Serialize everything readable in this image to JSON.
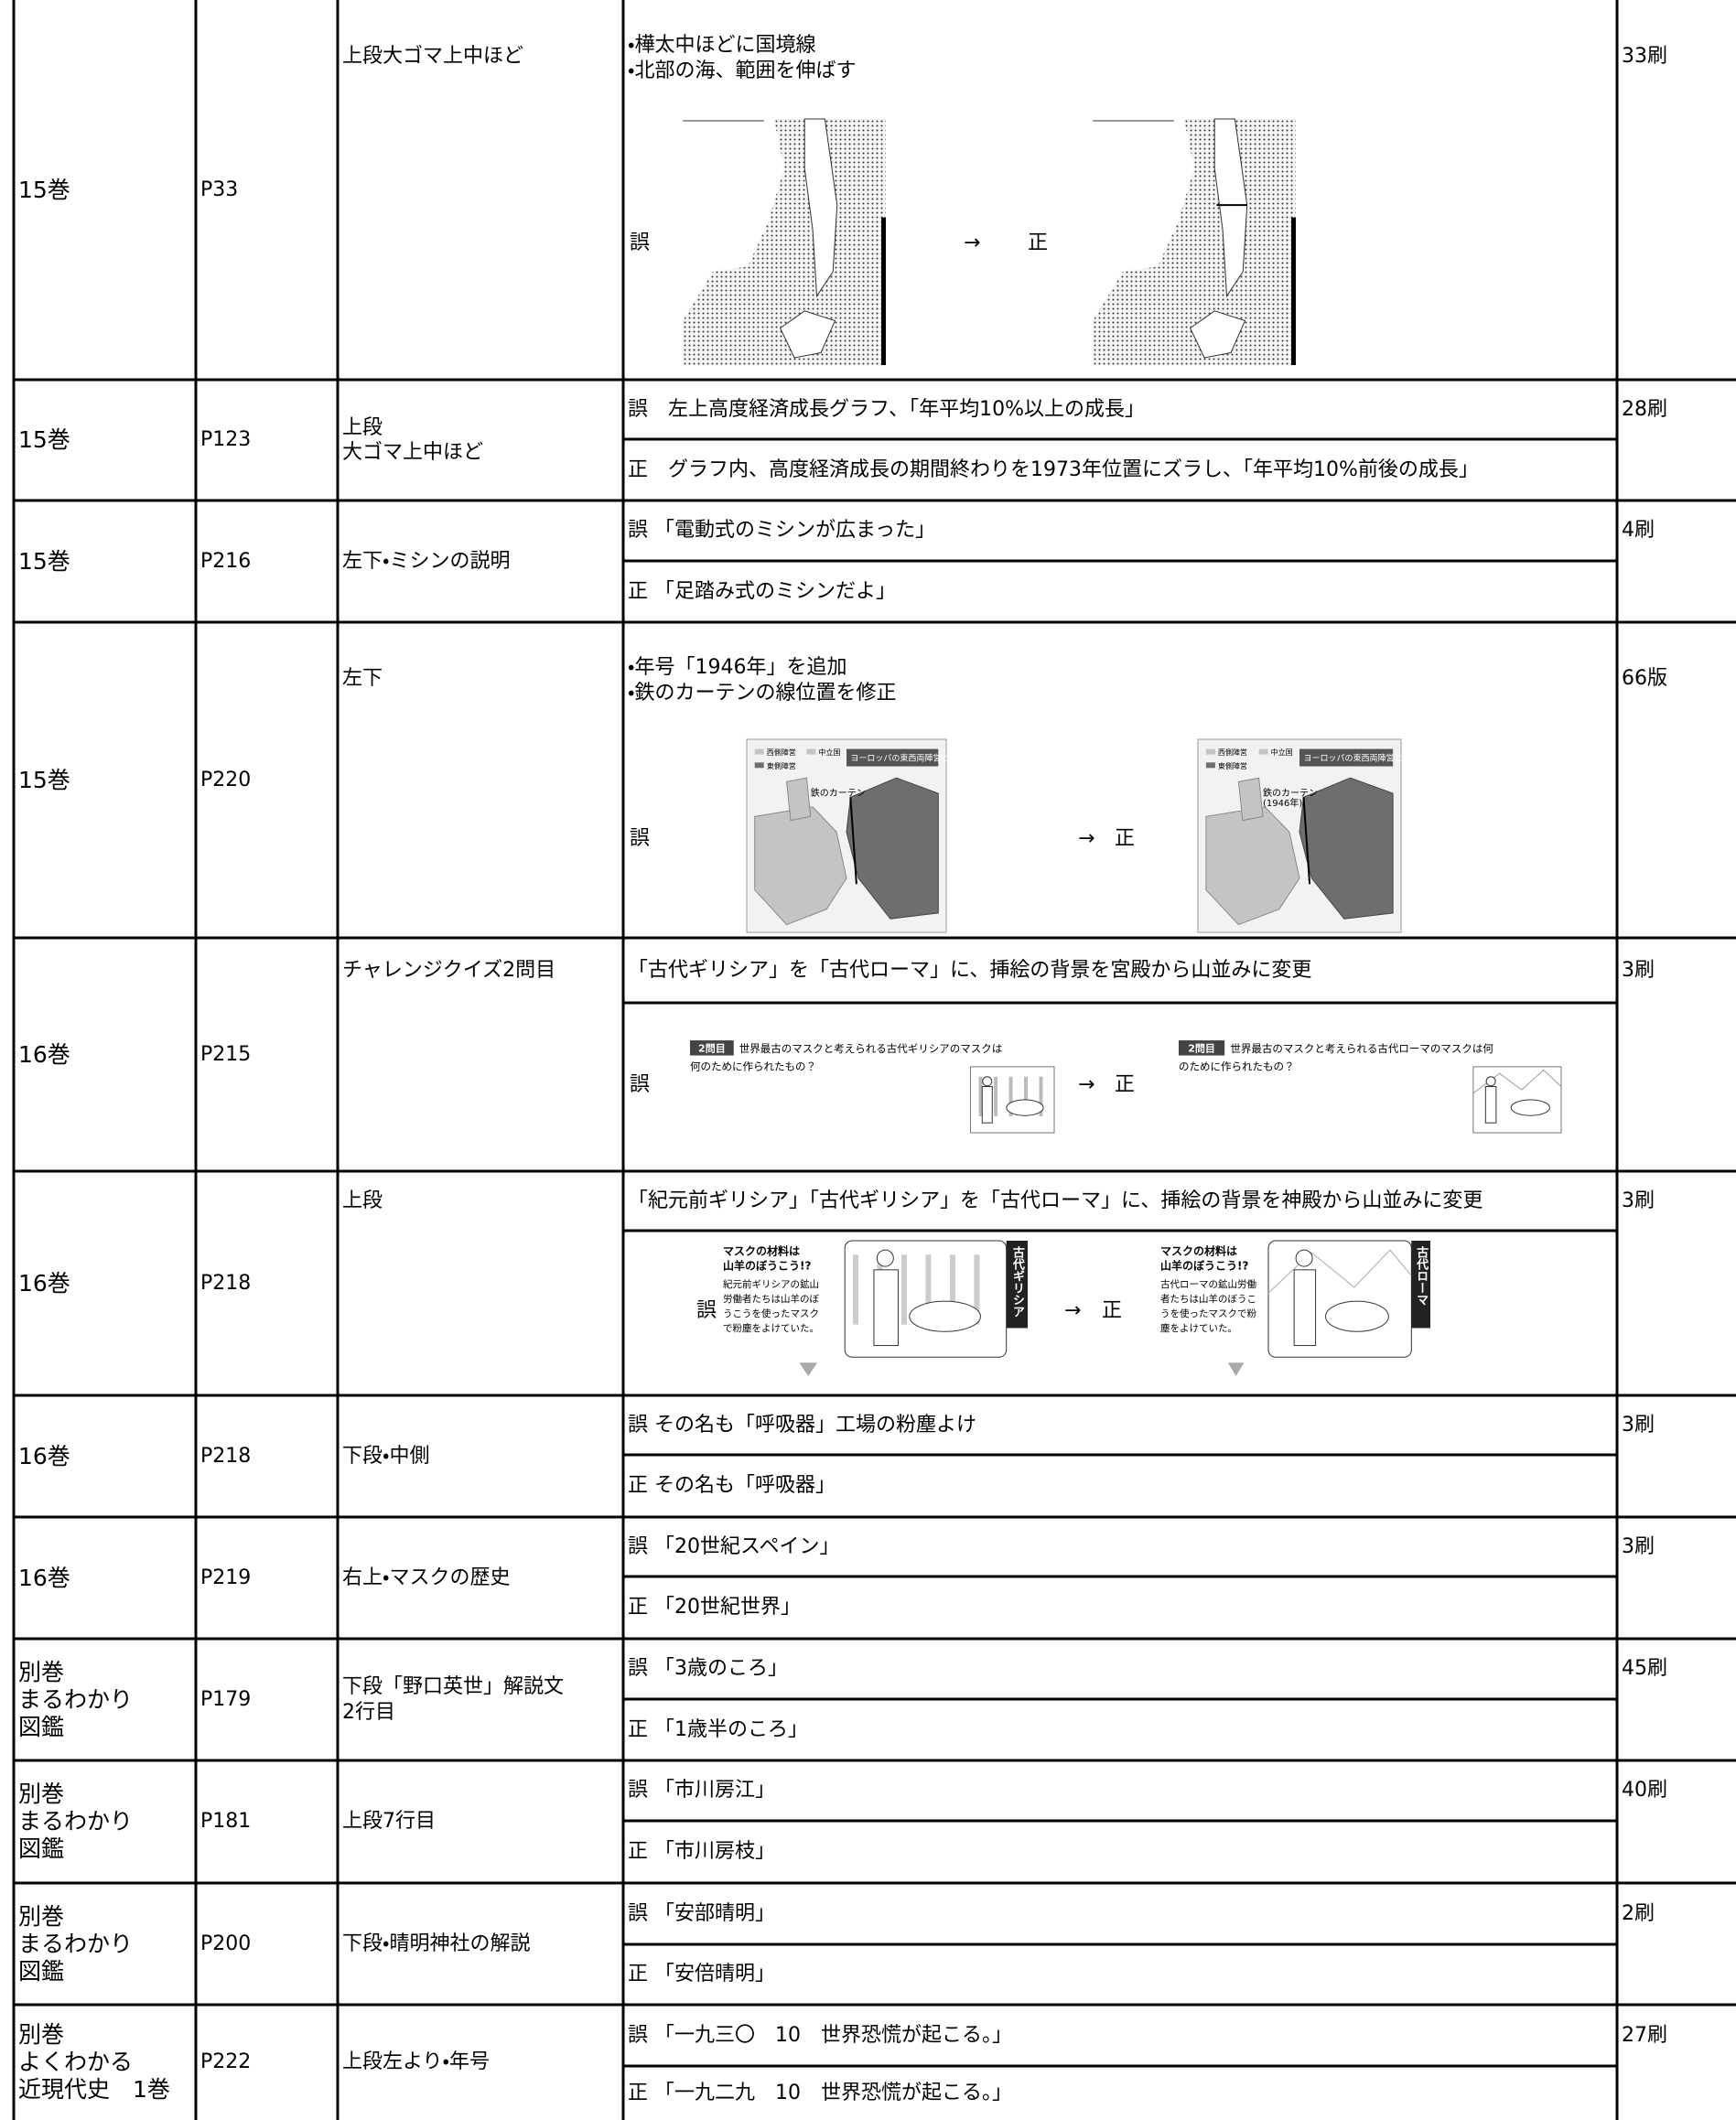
{
  "rows": [
    {
      "volume": "15巻",
      "page": "P33",
      "location": "上段大ゴマ上中ほど",
      "notes": [
        "・樺太中ほどに国境線",
        "・北部の海、範囲を伸ばす"
      ],
      "figure": {
        "kind": "map-border",
        "wrong_label": "誤",
        "arrow": "→",
        "right_label": "正"
      },
      "print": "33刷"
    },
    {
      "volume": "15巻",
      "page": "P123",
      "location": "上段\n大ゴマ上中ほど",
      "lines": [
        "誤　左上高度経済成長グラフ、「年平均10%以上の成長」",
        "正　グラフ内、高度経済成長の期間終わりを1973年位置にズラし、「年平均10%前後の成長」"
      ],
      "print": "28刷"
    },
    {
      "volume": "15巻",
      "page": "P216",
      "location": "左下・ミシンの説明",
      "lines": [
        "誤 「電動式のミシンが広まった」",
        "正 「足踏み式のミシンだよ」"
      ],
      "print": "4刷"
    },
    {
      "volume": "15巻",
      "page": "P220",
      "location": "左下",
      "notes": [
        "・年号「1946年」を追加",
        "・鉄のカーテンの線位置を修正"
      ],
      "figure": {
        "kind": "map-europe",
        "wrong_label": "誤",
        "arrow": "→",
        "right_label": "正",
        "before": {
          "title": "ヨーロッパの東西両陣営と冷戦",
          "legend": [
            "西側陣営",
            "中立国",
            "東側陣営"
          ],
          "callout": [
            "鉄のカーテン"
          ]
        },
        "after": {
          "title": "ヨーロッパの東西両陣営と冷戦",
          "legend": [
            "西側陣営",
            "中立国",
            "東側陣営"
          ],
          "callout": [
            "鉄のカーテン",
            "(1946年)"
          ]
        }
      },
      "print": "66版"
    },
    {
      "volume": "16巻",
      "page": "P215",
      "location": "チャレンジクイズ2問目",
      "note": "「古代ギリシア」を「古代ローマ」に、挿絵の背景を宮殿から山並みに変更",
      "figure": {
        "kind": "quiz",
        "wrong_label": "誤",
        "arrow": "→",
        "right_label": "正",
        "before": {
          "badge": "2問目",
          "lines": [
            "世界最古のマスクと考えられる古代ギリシアのマスクは",
            "何のために作られたもの？"
          ]
        },
        "after": {
          "badge": "2問目",
          "lines": [
            "世界最古のマスクと考えられる古代ローマのマスクは何",
            "のために作られたもの？"
          ]
        }
      },
      "print": "3刷"
    },
    {
      "volume": "16巻",
      "page": "P218",
      "location": "上段",
      "note": "「紀元前ギリシア」「古代ギリシア」を「古代ローマ」に、挿絵の背景を神殿から山並みに変更",
      "figure": {
        "kind": "mask",
        "wrong_label": "誤",
        "arrow": "→",
        "right_label": "正",
        "before": {
          "tag": "古代ギリシア",
          "lines": [
            "マスクの材料は",
            "山羊のぼうこう!?",
            "紀元前ギリシアの鉱山",
            "労働者たちは山羊のぼ",
            "うこうを使ったマスク",
            "で粉塵をよけていた。"
          ]
        },
        "after": {
          "tag": "古代ローマ",
          "lines": [
            "マスクの材料は",
            "山羊のぼうこう!?",
            "古代ローマの鉱山労働",
            "者たちは山羊のぼうこ",
            "うを使ったマスクで粉",
            "塵をよけていた。"
          ]
        }
      },
      "print": "3刷"
    },
    {
      "volume": "16巻",
      "page": "P218",
      "location": "下段・中側",
      "lines": [
        "誤 その名も「呼吸器」工場の粉塵よけ",
        "正 その名も「呼吸器」"
      ],
      "print": "3刷"
    },
    {
      "volume": "16巻",
      "page": "P219",
      "location": "右上・マスクの歴史",
      "lines": [
        "誤 「20世紀スペイン」",
        "正 「20世紀世界」"
      ],
      "print": "3刷"
    },
    {
      "volume": "別巻\nまるわかり\n図鑑",
      "page": "P179",
      "location": "下段「野口英世」解説文\n2行目",
      "lines": [
        "誤 「3歳のころ」",
        "正 「1歳半のころ」"
      ],
      "print": "45刷"
    },
    {
      "volume": "別巻\nまるわかり\n図鑑",
      "page": "P181",
      "location": "上段7行目",
      "lines": [
        "誤 「市川房江」",
        "正 「市川房枝」"
      ],
      "print": "40刷"
    },
    {
      "volume": "別巻\nまるわかり\n図鑑",
      "page": "P200",
      "location": "下段・晴明神社の解説",
      "lines": [
        "誤 「安部晴明」",
        "正 「安倍晴明」"
      ],
      "print": "2刷"
    },
    {
      "volume": "別巻\nよくわかる\n近現代史　1巻",
      "page": "P222",
      "location": "上段左より・年号",
      "lines": [
        "誤 「一九三〇　10　世界恐慌が起こる。」",
        "正 「一九二九　10　世界恐慌が起こる。」"
      ],
      "print": "27刷"
    }
  ]
}
